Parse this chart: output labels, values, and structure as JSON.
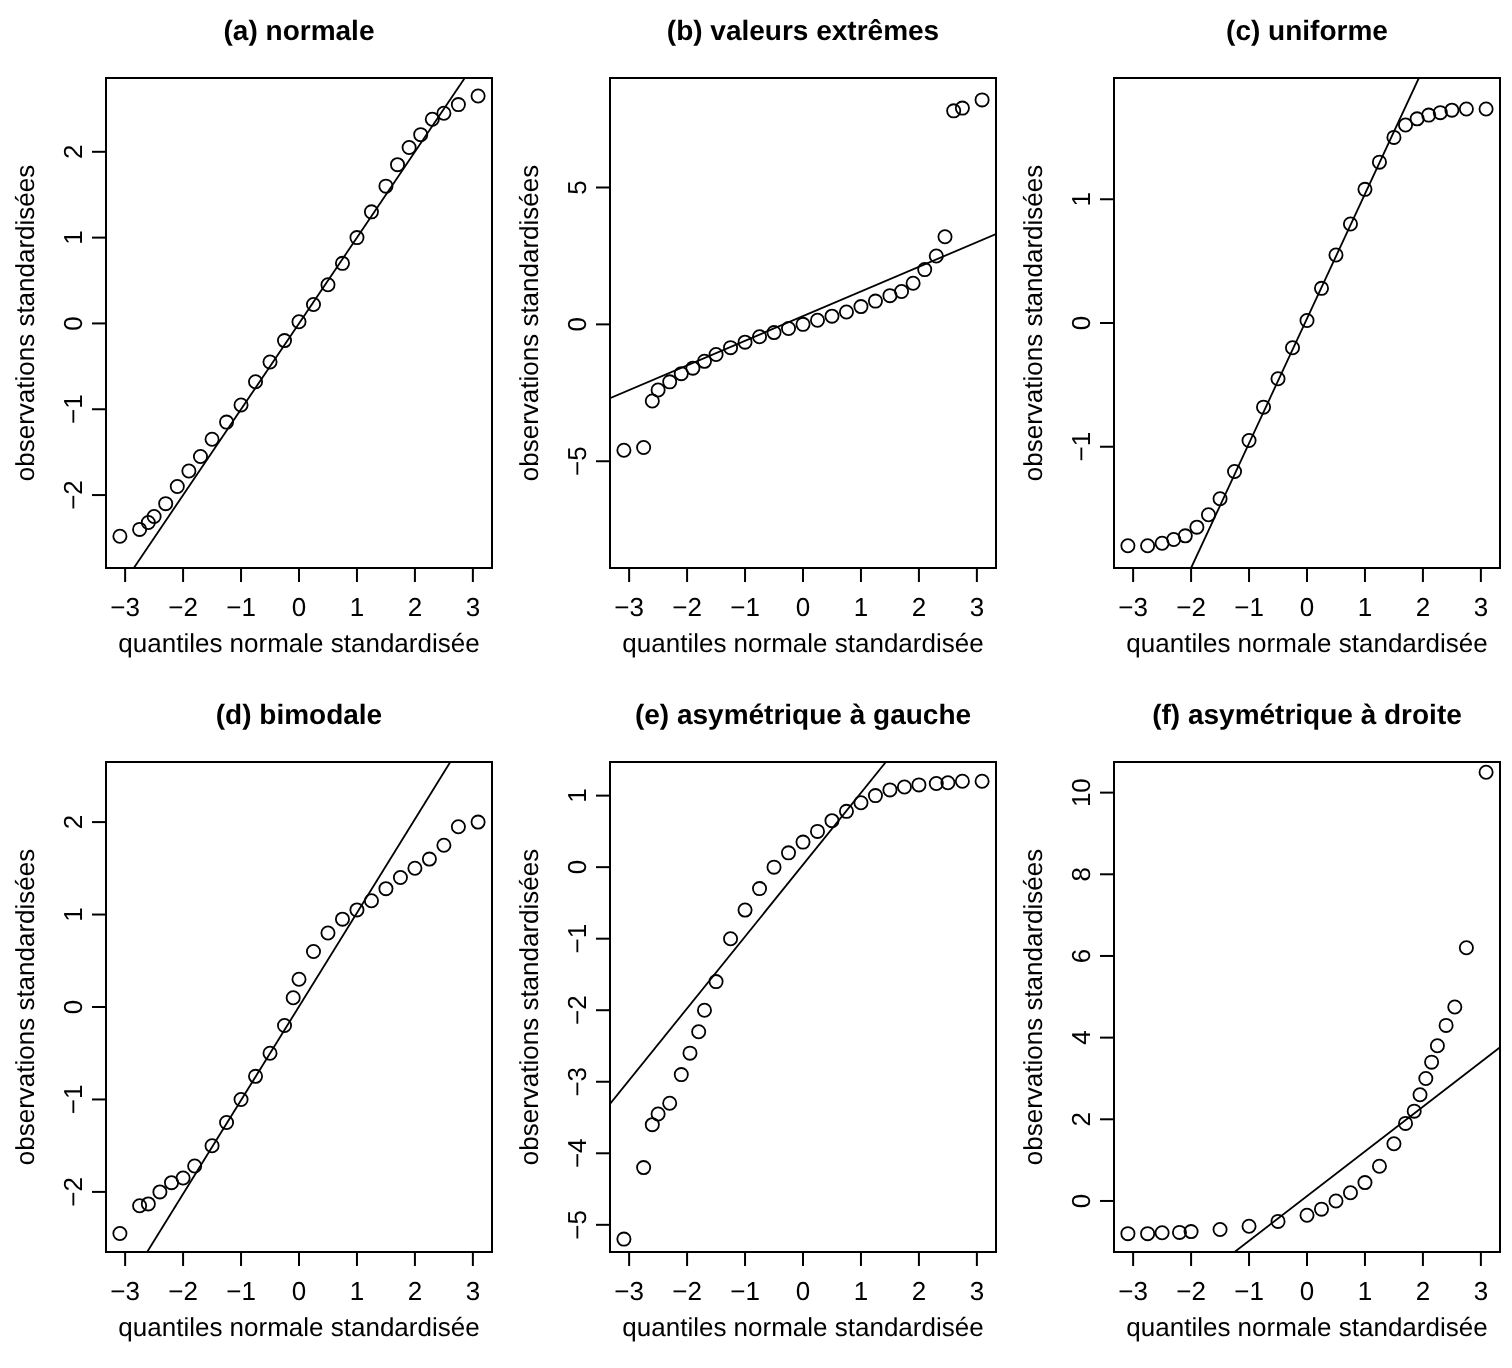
{
  "chart_data": [
    {
      "type": "scatter",
      "title": "(a) normale",
      "xlabel": "quantiles normale standardisée",
      "ylabel": "observations standardisées",
      "xlim": [
        -3.33,
        3.33
      ],
      "xticks": [
        -3,
        -2,
        -1,
        0,
        1,
        2,
        3
      ],
      "ylim": [
        -2.85,
        2.86
      ],
      "yticks": [
        -2,
        -1,
        0,
        1,
        2
      ],
      "series": [
        {
          "marker": "circle",
          "color": "#000000",
          "x": [
            -3.09,
            -2.75,
            -2.6,
            -2.5,
            -2.3,
            -2.1,
            -1.9,
            -1.7,
            -1.5,
            -1.25,
            -1,
            -0.75,
            -0.5,
            -0.25,
            0,
            0.25,
            0.5,
            0.75,
            1,
            1.25,
            1.5,
            1.7,
            1.9,
            2.1,
            2.3,
            2.5,
            2.75,
            3.09
          ],
          "values": [
            -2.48,
            -2.4,
            -2.32,
            -2.25,
            -2.1,
            -1.9,
            -1.72,
            -1.55,
            -1.35,
            -1.15,
            -0.95,
            -0.68,
            -0.45,
            -0.2,
            0.02,
            0.22,
            0.45,
            0.7,
            1.0,
            1.3,
            1.6,
            1.85,
            2.05,
            2.2,
            2.38,
            2.45,
            2.55,
            2.65
          ]
        },
        {
          "type": "line",
          "color": "#000000",
          "x": [
            -2.85,
            2.86
          ],
          "values": [
            -2.85,
            2.86
          ]
        }
      ]
    },
    {
      "type": "scatter",
      "title": "(b) valeurs extrêmes",
      "xlabel": "quantiles normale standardisée",
      "ylabel": "observations standardisées",
      "xlim": [
        -3.33,
        3.33
      ],
      "xticks": [
        -3,
        -2,
        -1,
        0,
        1,
        2,
        3
      ],
      "ylim": [
        -8.9,
        9.0
      ],
      "yticks": [
        -5,
        0,
        5
      ],
      "series": [
        {
          "marker": "circle",
          "color": "#000000",
          "x": [
            -3.09,
            -2.75,
            -2.6,
            -2.5,
            -2.3,
            -2.1,
            -1.9,
            -1.7,
            -1.5,
            -1.25,
            -1,
            -0.75,
            -0.5,
            -0.25,
            0,
            0.25,
            0.5,
            0.75,
            1,
            1.25,
            1.5,
            1.7,
            1.9,
            2.1,
            2.3,
            2.45,
            2.6,
            2.75,
            3.09
          ],
          "values": [
            -4.6,
            -4.5,
            -2.8,
            -2.4,
            -2.1,
            -1.8,
            -1.6,
            -1.35,
            -1.1,
            -0.85,
            -0.65,
            -0.45,
            -0.3,
            -0.15,
            0,
            0.15,
            0.3,
            0.45,
            0.65,
            0.85,
            1.05,
            1.2,
            1.5,
            2.0,
            2.5,
            3.2,
            7.8,
            7.9,
            8.2
          ]
        },
        {
          "type": "line",
          "color": "#000000",
          "x": [
            -3.33,
            3.33
          ],
          "values": [
            -2.7,
            3.3
          ]
        }
      ]
    },
    {
      "type": "scatter",
      "title": "(c) uniforme",
      "xlabel": "quantiles normale standardisée",
      "ylabel": "observations standardisées",
      "xlim": [
        -3.33,
        3.33
      ],
      "xticks": [
        -3,
        -2,
        -1,
        0,
        1,
        2,
        3
      ],
      "ylim": [
        -1.98,
        1.98
      ],
      "yticks": [
        -1,
        0,
        1
      ],
      "series": [
        {
          "marker": "circle",
          "color": "#000000",
          "x": [
            -3.09,
            -2.75,
            -2.5,
            -2.3,
            -2.1,
            -1.9,
            -1.7,
            -1.5,
            -1.25,
            -1,
            -0.75,
            -0.5,
            -0.25,
            0,
            0.25,
            0.5,
            0.75,
            1,
            1.25,
            1.5,
            1.7,
            1.9,
            2.1,
            2.3,
            2.5,
            2.75,
            3.09
          ],
          "values": [
            -1.8,
            -1.8,
            -1.78,
            -1.75,
            -1.72,
            -1.65,
            -1.55,
            -1.42,
            -1.2,
            -0.95,
            -0.68,
            -0.45,
            -0.2,
            0.02,
            0.28,
            0.55,
            0.8,
            1.08,
            1.3,
            1.5,
            1.6,
            1.65,
            1.68,
            1.7,
            1.72,
            1.73,
            1.73
          ]
        },
        {
          "type": "line",
          "color": "#000000",
          "x": [
            -2.0,
            1.93
          ],
          "values": [
            -1.98,
            1.98
          ]
        }
      ]
    },
    {
      "type": "scatter",
      "title": "(d) bimodale",
      "xlabel": "quantiles normale standardisée",
      "ylabel": "observations standardisées",
      "xlim": [
        -3.33,
        3.33
      ],
      "xticks": [
        -3,
        -2,
        -1,
        0,
        1,
        2,
        3
      ],
      "ylim": [
        -2.65,
        2.65
      ],
      "yticks": [
        -2,
        -1,
        0,
        1,
        2
      ],
      "series": [
        {
          "marker": "circle",
          "color": "#000000",
          "x": [
            -3.09,
            -2.75,
            -2.6,
            -2.4,
            -2.2,
            -2,
            -1.8,
            -1.5,
            -1.25,
            -1,
            -0.75,
            -0.5,
            -0.25,
            -0.1,
            0,
            0.25,
            0.5,
            0.75,
            1,
            1.25,
            1.5,
            1.75,
            2,
            2.25,
            2.5,
            2.75,
            3.09
          ],
          "values": [
            -2.45,
            -2.15,
            -2.13,
            -2.0,
            -1.9,
            -1.85,
            -1.72,
            -1.5,
            -1.25,
            -1.0,
            -0.75,
            -0.5,
            -0.2,
            0.1,
            0.3,
            0.6,
            0.8,
            0.95,
            1.05,
            1.15,
            1.28,
            1.4,
            1.5,
            1.6,
            1.75,
            1.95,
            2.0
          ]
        },
        {
          "type": "line",
          "color": "#000000",
          "x": [
            -2.62,
            2.61
          ],
          "values": [
            -2.65,
            2.65
          ]
        }
      ]
    },
    {
      "type": "scatter",
      "title": "(e) asymétrique à gauche",
      "xlabel": "quantiles normale standardisée",
      "ylabel": "observations standardisées",
      "xlim": [
        -3.33,
        3.33
      ],
      "xticks": [
        -3,
        -2,
        -1,
        0,
        1,
        2,
        3
      ],
      "ylim": [
        -5.38,
        1.47
      ],
      "yticks": [
        -5,
        -4,
        -3,
        -2,
        -1,
        0,
        1
      ],
      "series": [
        {
          "marker": "circle",
          "color": "#000000",
          "x": [
            -3.09,
            -2.75,
            -2.6,
            -2.5,
            -2.3,
            -2.1,
            -1.95,
            -1.8,
            -1.7,
            -1.5,
            -1.25,
            -1,
            -0.75,
            -0.5,
            -0.25,
            0,
            0.25,
            0.5,
            0.75,
            1,
            1.25,
            1.5,
            1.75,
            2,
            2.3,
            2.5,
            2.75,
            3.09
          ],
          "values": [
            -5.2,
            -4.2,
            -3.6,
            -3.45,
            -3.3,
            -2.9,
            -2.6,
            -2.3,
            -2.0,
            -1.6,
            -1.0,
            -0.6,
            -0.3,
            0,
            0.2,
            0.35,
            0.5,
            0.65,
            0.78,
            0.9,
            1.0,
            1.08,
            1.12,
            1.15,
            1.17,
            1.18,
            1.2,
            1.2
          ]
        },
        {
          "type": "line",
          "color": "#000000",
          "x": [
            -3.33,
            1.43
          ],
          "values": [
            -3.31,
            1.47
          ]
        }
      ]
    },
    {
      "type": "scatter",
      "title": "(f) asymétrique à droite",
      "xlabel": "quantiles normale standardisée",
      "ylabel": "observations standardisées",
      "xlim": [
        -3.33,
        3.33
      ],
      "xticks": [
        -3,
        -2,
        -1,
        0,
        1,
        2,
        3
      ],
      "ylim": [
        -1.25,
        10.75
      ],
      "yticks": [
        0,
        2,
        4,
        6,
        8,
        10
      ],
      "series": [
        {
          "marker": "circle",
          "color": "#000000",
          "x": [
            -3.09,
            -2.75,
            -2.5,
            -2.2,
            -2,
            -1.5,
            -1,
            -0.5,
            0,
            0.25,
            0.5,
            0.75,
            1,
            1.25,
            1.5,
            1.7,
            1.85,
            1.95,
            2.05,
            2.15,
            2.25,
            2.4,
            2.55,
            2.75,
            3.09
          ],
          "values": [
            -0.8,
            -0.8,
            -0.78,
            -0.77,
            -0.75,
            -0.7,
            -0.62,
            -0.5,
            -0.35,
            -0.2,
            0,
            0.2,
            0.45,
            0.85,
            1.4,
            1.9,
            2.2,
            2.6,
            3.0,
            3.4,
            3.8,
            4.3,
            4.75,
            6.2,
            10.5
          ]
        },
        {
          "type": "line",
          "color": "#000000",
          "x": [
            -1.25,
            3.32
          ],
          "values": [
            -1.25,
            3.75
          ]
        }
      ]
    }
  ]
}
